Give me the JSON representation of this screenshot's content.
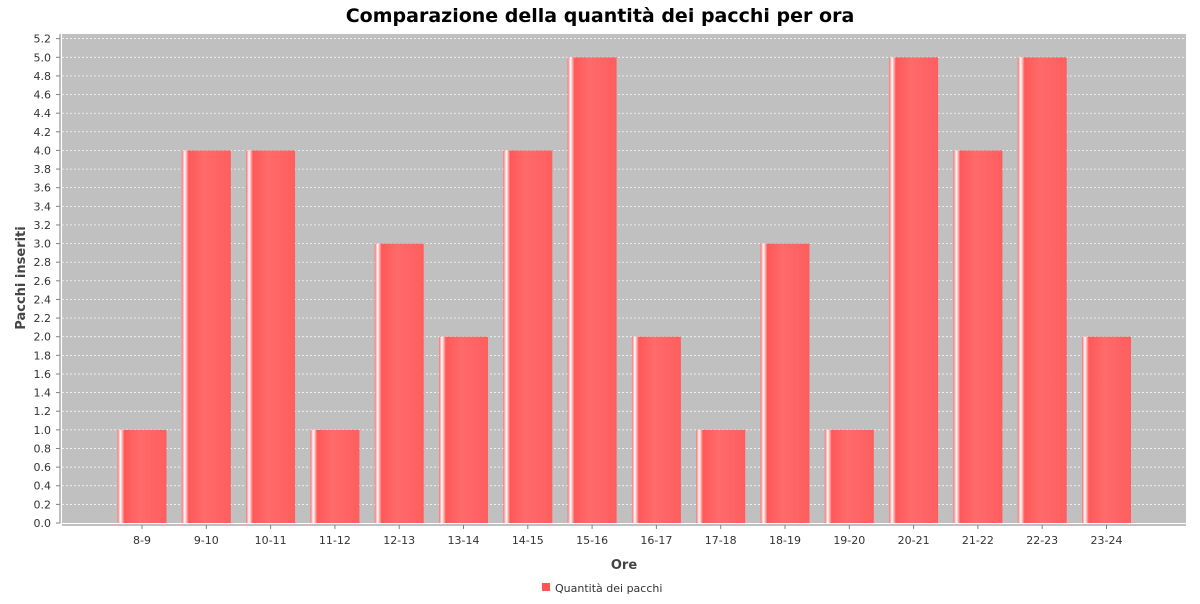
{
  "chart_data": {
    "type": "bar",
    "title": "Comparazione della quantità dei pacchi per ora",
    "xlabel": "Ore",
    "ylabel": "Pacchi inseriti",
    "categories": [
      "8-9",
      "9-10",
      "10-11",
      "11-12",
      "12-13",
      "13-14",
      "14-15",
      "15-16",
      "16-17",
      "17-18",
      "18-19",
      "19-20",
      "20-21",
      "21-22",
      "22-23",
      "23-24"
    ],
    "series": [
      {
        "name": "Quantità dei pacchi",
        "values": [
          1,
          4,
          4,
          1,
          3,
          2,
          4,
          5,
          2,
          1,
          3,
          1,
          5,
          4,
          5,
          2
        ],
        "color": "#ff5555"
      }
    ],
    "ylim": [
      0,
      5.25
    ],
    "yticks": [
      "0.0",
      "0.2",
      "0.4",
      "0.6",
      "0.8",
      "1.0",
      "1.2",
      "1.4",
      "1.6",
      "1.8",
      "2.0",
      "2.2",
      "2.4",
      "2.6",
      "2.8",
      "3.0",
      "3.2",
      "3.4",
      "3.6",
      "3.8",
      "4.0",
      "4.2",
      "4.4",
      "4.6",
      "4.8",
      "5.0",
      "5.2"
    ],
    "grid": true,
    "legend_position": "bottom-center",
    "colors": {
      "plot_background": "#c0c0c0",
      "gridline": "#ffffff",
      "axis": "#808080",
      "bar": "#ff5555"
    }
  }
}
